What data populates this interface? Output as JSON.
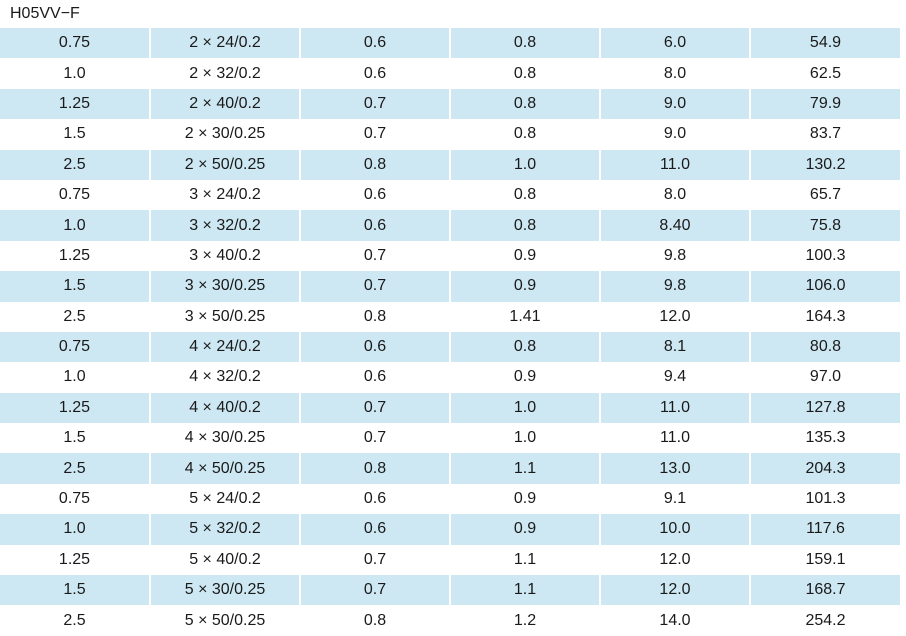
{
  "title": "H05VV−F",
  "table": {
    "rows": [
      [
        "0.75",
        "2 × 24/0.2",
        "0.6",
        "0.8",
        "6.0",
        "54.9"
      ],
      [
        "1.0",
        "2 × 32/0.2",
        "0.6",
        "0.8",
        "8.0",
        "62.5"
      ],
      [
        "1.25",
        "2 × 40/0.2",
        "0.7",
        "0.8",
        "9.0",
        "79.9"
      ],
      [
        "1.5",
        "2 × 30/0.25",
        "0.7",
        "0.8",
        "9.0",
        "83.7"
      ],
      [
        "2.5",
        "2 × 50/0.25",
        "0.8",
        "1.0",
        "11.0",
        "130.2"
      ],
      [
        "0.75",
        "3 × 24/0.2",
        "0.6",
        "0.8",
        "8.0",
        "65.7"
      ],
      [
        "1.0",
        "3 × 32/0.2",
        "0.6",
        "0.8",
        "8.40",
        "75.8"
      ],
      [
        "1.25",
        "3 × 40/0.2",
        "0.7",
        "0.9",
        "9.8",
        "100.3"
      ],
      [
        "1.5",
        "3 × 30/0.25",
        "0.7",
        "0.9",
        "9.8",
        "106.0"
      ],
      [
        "2.5",
        "3 × 50/0.25",
        "0.8",
        "1.41",
        "12.0",
        "164.3"
      ],
      [
        "0.75",
        "4 × 24/0.2",
        "0.6",
        "0.8",
        "8.1",
        "80.8"
      ],
      [
        "1.0",
        "4 × 32/0.2",
        "0.6",
        "0.9",
        "9.4",
        "97.0"
      ],
      [
        "1.25",
        "4 × 40/0.2",
        "0.7",
        "1.0",
        "11.0",
        "127.8"
      ],
      [
        "1.5",
        "4 × 30/0.25",
        "0.7",
        "1.0",
        "11.0",
        "135.3"
      ],
      [
        "2.5",
        "4 × 50/0.25",
        "0.8",
        "1.1",
        "13.0",
        "204.3"
      ],
      [
        "0.75",
        "5 × 24/0.2",
        "0.6",
        "0.9",
        "9.1",
        "101.3"
      ],
      [
        "1.0",
        "5 × 32/0.2",
        "0.6",
        "0.9",
        "10.0",
        "117.6"
      ],
      [
        "1.25",
        "5 × 40/0.2",
        "0.7",
        "1.1",
        "12.0",
        "159.1"
      ],
      [
        "1.5",
        "5 × 30/0.25",
        "0.7",
        "1.1",
        "12.0",
        "168.7"
      ],
      [
        "2.5",
        "5 × 50/0.25",
        "0.8",
        "1.2",
        "14.0",
        "254.2"
      ]
    ]
  }
}
